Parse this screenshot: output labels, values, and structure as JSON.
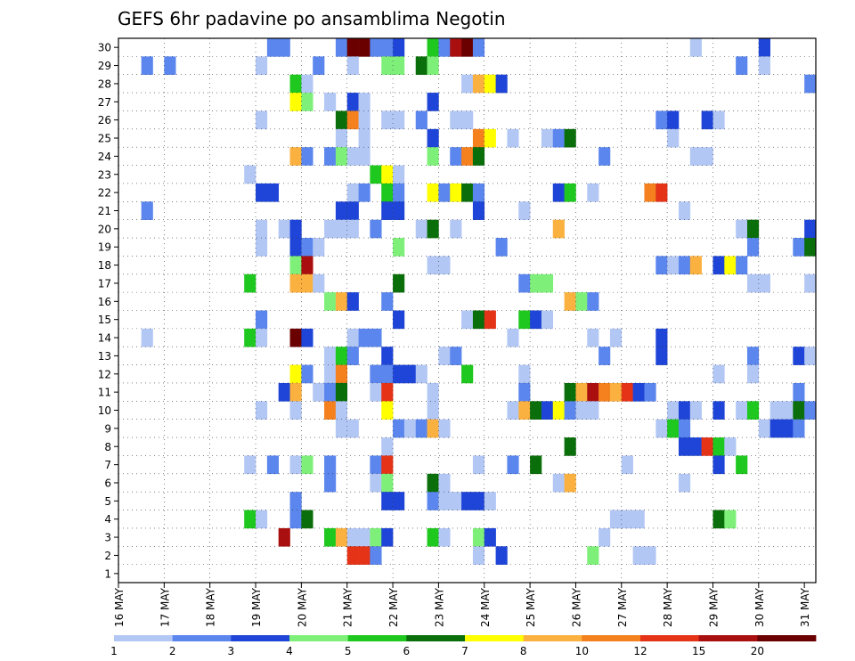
{
  "chart_data": {
    "type": "heatmap",
    "title": "GEFS 6hr padavine po ansamblima Negotin",
    "y_categories": [
      "1",
      "2",
      "3",
      "4",
      "5",
      "6",
      "7",
      "8",
      "9",
      "10",
      "11",
      "12",
      "13",
      "14",
      "15",
      "16",
      "17",
      "18",
      "19",
      "20",
      "21",
      "22",
      "23",
      "24",
      "25",
      "26",
      "27",
      "28",
      "29",
      "30"
    ],
    "x_tick_labels": [
      "16 MAY",
      "17 MAY",
      "18 MAY",
      "19 MAY",
      "20 MAY",
      "21 MAY",
      "22 MAY",
      "23 MAY",
      "24 MAY",
      "25 MAY",
      "26 MAY",
      "27 MAY",
      "28 MAY",
      "29 MAY",
      "30 MAY",
      "31 MAY"
    ],
    "x_steps_per_day": 4,
    "x_steps_total": 61,
    "grid": true,
    "colorbar": {
      "levels": [
        1,
        2,
        3,
        4,
        5,
        6,
        7,
        8,
        10,
        12,
        15,
        20
      ],
      "level_labels": [
        "1",
        "2",
        "3",
        "4",
        "5",
        "6",
        "7",
        "8",
        "10",
        "12",
        "15",
        "20"
      ],
      "colors": [
        "#b3c7f5",
        "#5b86ee",
        "#1e45d7",
        "#7ef07a",
        "#1ec81e",
        "#0a6e0a",
        "#ffff00",
        "#fbb13f",
        "#f4801e",
        "#e53318",
        "#aa0f0f",
        "#6b0000"
      ]
    },
    "cells": [
      [
        30,
        13,
        1
      ],
      [
        30,
        14,
        1
      ],
      [
        30,
        19,
        1
      ],
      [
        30,
        20,
        11
      ],
      [
        30,
        21,
        11
      ],
      [
        30,
        22,
        1
      ],
      [
        30,
        23,
        1
      ],
      [
        30,
        24,
        2
      ],
      [
        30,
        27,
        4
      ],
      [
        30,
        28,
        1
      ],
      [
        30,
        29,
        10
      ],
      [
        30,
        30,
        11
      ],
      [
        30,
        31,
        1
      ],
      [
        30,
        50,
        0
      ],
      [
        30,
        56,
        2
      ],
      [
        29,
        2,
        1
      ],
      [
        29,
        4,
        1
      ],
      [
        29,
        12,
        0
      ],
      [
        29,
        17,
        1
      ],
      [
        29,
        20,
        0
      ],
      [
        29,
        23,
        3
      ],
      [
        29,
        24,
        3
      ],
      [
        29,
        26,
        5
      ],
      [
        29,
        27,
        3
      ],
      [
        29,
        54,
        1
      ],
      [
        29,
        56,
        0
      ],
      [
        28,
        15,
        4
      ],
      [
        28,
        16,
        0
      ],
      [
        28,
        30,
        0
      ],
      [
        28,
        31,
        7
      ],
      [
        28,
        32,
        6
      ],
      [
        28,
        33,
        2
      ],
      [
        28,
        60,
        1
      ],
      [
        27,
        15,
        6
      ],
      [
        27,
        16,
        3
      ],
      [
        27,
        18,
        0
      ],
      [
        27,
        20,
        2
      ],
      [
        27,
        21,
        0
      ],
      [
        27,
        27,
        2
      ],
      [
        26,
        12,
        0
      ],
      [
        26,
        19,
        5
      ],
      [
        26,
        20,
        8
      ],
      [
        26,
        21,
        0
      ],
      [
        26,
        23,
        0
      ],
      [
        26,
        24,
        0
      ],
      [
        26,
        26,
        1
      ],
      [
        26,
        29,
        0
      ],
      [
        26,
        30,
        0
      ],
      [
        26,
        47,
        1
      ],
      [
        26,
        48,
        2
      ],
      [
        26,
        51,
        2
      ],
      [
        26,
        52,
        0
      ],
      [
        25,
        19,
        0
      ],
      [
        25,
        21,
        0
      ],
      [
        25,
        27,
        2
      ],
      [
        25,
        31,
        8
      ],
      [
        25,
        32,
        6
      ],
      [
        25,
        34,
        0
      ],
      [
        25,
        37,
        0
      ],
      [
        25,
        38,
        1
      ],
      [
        25,
        39,
        5
      ],
      [
        25,
        48,
        0
      ],
      [
        24,
        15,
        7
      ],
      [
        24,
        16,
        1
      ],
      [
        24,
        18,
        1
      ],
      [
        24,
        19,
        3
      ],
      [
        24,
        20,
        0
      ],
      [
        24,
        21,
        0
      ],
      [
        24,
        27,
        3
      ],
      [
        24,
        29,
        1
      ],
      [
        24,
        30,
        8
      ],
      [
        24,
        31,
        5
      ],
      [
        24,
        42,
        1
      ],
      [
        24,
        50,
        0
      ],
      [
        24,
        51,
        0
      ],
      [
        23,
        11,
        0
      ],
      [
        23,
        22,
        4
      ],
      [
        23,
        23,
        6
      ],
      [
        23,
        24,
        0
      ],
      [
        22,
        12,
        2
      ],
      [
        22,
        13,
        2
      ],
      [
        22,
        20,
        0
      ],
      [
        22,
        21,
        1
      ],
      [
        22,
        23,
        4
      ],
      [
        22,
        24,
        1
      ],
      [
        22,
        27,
        6
      ],
      [
        22,
        28,
        1
      ],
      [
        22,
        29,
        6
      ],
      [
        22,
        30,
        5
      ],
      [
        22,
        31,
        1
      ],
      [
        22,
        38,
        2
      ],
      [
        22,
        39,
        4
      ],
      [
        22,
        41,
        0
      ],
      [
        22,
        46,
        8
      ],
      [
        22,
        47,
        9
      ],
      [
        21,
        2,
        1
      ],
      [
        21,
        19,
        2
      ],
      [
        21,
        20,
        2
      ],
      [
        21,
        23,
        2
      ],
      [
        21,
        24,
        2
      ],
      [
        21,
        31,
        2
      ],
      [
        21,
        35,
        0
      ],
      [
        21,
        49,
        0
      ],
      [
        20,
        12,
        0
      ],
      [
        20,
        14,
        0
      ],
      [
        20,
        15,
        2
      ],
      [
        20,
        18,
        0
      ],
      [
        20,
        19,
        0
      ],
      [
        20,
        20,
        0
      ],
      [
        20,
        22,
        1
      ],
      [
        20,
        26,
        0
      ],
      [
        20,
        27,
        5
      ],
      [
        20,
        29,
        0
      ],
      [
        20,
        38,
        7
      ],
      [
        20,
        54,
        0
      ],
      [
        20,
        55,
        5
      ],
      [
        20,
        60,
        2
      ],
      [
        19,
        12,
        0
      ],
      [
        19,
        15,
        2
      ],
      [
        19,
        16,
        1
      ],
      [
        19,
        17,
        0
      ],
      [
        19,
        24,
        3
      ],
      [
        19,
        33,
        1
      ],
      [
        19,
        55,
        1
      ],
      [
        19,
        59,
        1
      ],
      [
        19,
        60,
        5
      ],
      [
        18,
        15,
        3
      ],
      [
        18,
        16,
        10
      ],
      [
        18,
        27,
        0
      ],
      [
        18,
        28,
        0
      ],
      [
        18,
        47,
        1
      ],
      [
        18,
        48,
        0
      ],
      [
        18,
        49,
        1
      ],
      [
        18,
        50,
        7
      ],
      [
        18,
        52,
        2
      ],
      [
        18,
        53,
        6
      ],
      [
        18,
        54,
        1
      ],
      [
        17,
        11,
        4
      ],
      [
        17,
        15,
        7
      ],
      [
        17,
        16,
        7
      ],
      [
        17,
        17,
        0
      ],
      [
        17,
        24,
        5
      ],
      [
        17,
        35,
        1
      ],
      [
        17,
        36,
        3
      ],
      [
        17,
        37,
        3
      ],
      [
        17,
        55,
        0
      ],
      [
        17,
        56,
        0
      ],
      [
        17,
        60,
        0
      ],
      [
        16,
        18,
        3
      ],
      [
        16,
        19,
        7
      ],
      [
        16,
        20,
        2
      ],
      [
        16,
        23,
        1
      ],
      [
        16,
        39,
        7
      ],
      [
        16,
        40,
        3
      ],
      [
        16,
        41,
        1
      ],
      [
        15,
        12,
        1
      ],
      [
        15,
        24,
        2
      ],
      [
        15,
        30,
        0
      ],
      [
        15,
        31,
        5
      ],
      [
        15,
        32,
        9
      ],
      [
        15,
        35,
        4
      ],
      [
        15,
        36,
        2
      ],
      [
        15,
        37,
        0
      ],
      [
        14,
        2,
        0
      ],
      [
        14,
        11,
        4
      ],
      [
        14,
        12,
        0
      ],
      [
        14,
        15,
        11
      ],
      [
        14,
        16,
        2
      ],
      [
        14,
        20,
        0
      ],
      [
        14,
        21,
        1
      ],
      [
        14,
        22,
        1
      ],
      [
        14,
        34,
        0
      ],
      [
        14,
        41,
        0
      ],
      [
        14,
        43,
        0
      ],
      [
        14,
        47,
        2
      ],
      [
        13,
        18,
        0
      ],
      [
        13,
        19,
        4
      ],
      [
        13,
        20,
        1
      ],
      [
        13,
        23,
        2
      ],
      [
        13,
        28,
        0
      ],
      [
        13,
        29,
        1
      ],
      [
        13,
        42,
        1
      ],
      [
        13,
        47,
        2
      ],
      [
        13,
        55,
        1
      ],
      [
        13,
        59,
        2
      ],
      [
        13,
        60,
        0
      ],
      [
        12,
        15,
        6
      ],
      [
        12,
        16,
        1
      ],
      [
        12,
        18,
        0
      ],
      [
        12,
        19,
        8
      ],
      [
        12,
        22,
        1
      ],
      [
        12,
        23,
        1
      ],
      [
        12,
        24,
        2
      ],
      [
        12,
        25,
        2
      ],
      [
        12,
        26,
        0
      ],
      [
        12,
        30,
        4
      ],
      [
        12,
        35,
        0
      ],
      [
        12,
        52,
        0
      ],
      [
        12,
        55,
        0
      ],
      [
        11,
        14,
        2
      ],
      [
        11,
        15,
        7
      ],
      [
        11,
        17,
        0
      ],
      [
        11,
        18,
        1
      ],
      [
        11,
        19,
        5
      ],
      [
        11,
        22,
        0
      ],
      [
        11,
        23,
        9
      ],
      [
        11,
        27,
        0
      ],
      [
        11,
        35,
        1
      ],
      [
        11,
        39,
        5
      ],
      [
        11,
        40,
        7
      ],
      [
        11,
        41,
        10
      ],
      [
        11,
        42,
        8
      ],
      [
        11,
        43,
        7
      ],
      [
        11,
        44,
        9
      ],
      [
        11,
        45,
        2
      ],
      [
        11,
        46,
        1
      ],
      [
        11,
        59,
        1
      ],
      [
        10,
        12,
        0
      ],
      [
        10,
        15,
        0
      ],
      [
        10,
        18,
        8
      ],
      [
        10,
        19,
        0
      ],
      [
        10,
        23,
        6
      ],
      [
        10,
        27,
        0
      ],
      [
        10,
        34,
        0
      ],
      [
        10,
        35,
        7
      ],
      [
        10,
        36,
        5
      ],
      [
        10,
        37,
        2
      ],
      [
        10,
        38,
        6
      ],
      [
        10,
        39,
        1
      ],
      [
        10,
        40,
        0
      ],
      [
        10,
        41,
        0
      ],
      [
        10,
        48,
        0
      ],
      [
        10,
        49,
        2
      ],
      [
        10,
        50,
        0
      ],
      [
        10,
        52,
        2
      ],
      [
        10,
        54,
        0
      ],
      [
        10,
        55,
        4
      ],
      [
        10,
        57,
        0
      ],
      [
        10,
        58,
        0
      ],
      [
        10,
        59,
        5
      ],
      [
        10,
        60,
        1
      ],
      [
        9,
        19,
        0
      ],
      [
        9,
        20,
        0
      ],
      [
        9,
        24,
        1
      ],
      [
        9,
        25,
        0
      ],
      [
        9,
        26,
        1
      ],
      [
        9,
        27,
        7
      ],
      [
        9,
        28,
        0
      ],
      [
        9,
        47,
        0
      ],
      [
        9,
        48,
        4
      ],
      [
        9,
        49,
        1
      ],
      [
        9,
        56,
        0
      ],
      [
        9,
        57,
        2
      ],
      [
        9,
        58,
        2
      ],
      [
        9,
        59,
        1
      ],
      [
        8,
        23,
        0
      ],
      [
        8,
        39,
        5
      ],
      [
        8,
        49,
        2
      ],
      [
        8,
        50,
        2
      ],
      [
        8,
        51,
        9
      ],
      [
        8,
        52,
        4
      ],
      [
        8,
        53,
        0
      ],
      [
        7,
        11,
        0
      ],
      [
        7,
        13,
        1
      ],
      [
        7,
        15,
        0
      ],
      [
        7,
        16,
        3
      ],
      [
        7,
        18,
        1
      ],
      [
        7,
        22,
        1
      ],
      [
        7,
        23,
        9
      ],
      [
        7,
        31,
        0
      ],
      [
        7,
        34,
        1
      ],
      [
        7,
        36,
        5
      ],
      [
        7,
        44,
        0
      ],
      [
        7,
        52,
        2
      ],
      [
        7,
        54,
        4
      ],
      [
        6,
        18,
        1
      ],
      [
        6,
        22,
        0
      ],
      [
        6,
        23,
        3
      ],
      [
        6,
        27,
        5
      ],
      [
        6,
        28,
        0
      ],
      [
        6,
        38,
        0
      ],
      [
        6,
        39,
        7
      ],
      [
        6,
        49,
        0
      ],
      [
        5,
        15,
        1
      ],
      [
        5,
        23,
        2
      ],
      [
        5,
        24,
        2
      ],
      [
        5,
        27,
        1
      ],
      [
        5,
        28,
        0
      ],
      [
        5,
        29,
        0
      ],
      [
        5,
        30,
        2
      ],
      [
        5,
        31,
        2
      ],
      [
        5,
        32,
        0
      ],
      [
        4,
        11,
        4
      ],
      [
        4,
        12,
        0
      ],
      [
        4,
        15,
        1
      ],
      [
        4,
        16,
        5
      ],
      [
        4,
        43,
        0
      ],
      [
        4,
        44,
        0
      ],
      [
        4,
        45,
        0
      ],
      [
        4,
        52,
        5
      ],
      [
        4,
        53,
        3
      ],
      [
        3,
        14,
        10
      ],
      [
        3,
        18,
        4
      ],
      [
        3,
        19,
        7
      ],
      [
        3,
        20,
        0
      ],
      [
        3,
        21,
        0
      ],
      [
        3,
        22,
        3
      ],
      [
        3,
        23,
        2
      ],
      [
        3,
        27,
        4
      ],
      [
        3,
        28,
        0
      ],
      [
        3,
        31,
        3
      ],
      [
        3,
        32,
        2
      ],
      [
        3,
        42,
        0
      ],
      [
        2,
        20,
        9
      ],
      [
        2,
        21,
        9
      ],
      [
        2,
        22,
        1
      ],
      [
        2,
        31,
        0
      ],
      [
        2,
        33,
        2
      ],
      [
        2,
        41,
        3
      ],
      [
        2,
        45,
        0
      ],
      [
        2,
        46,
        0
      ]
    ]
  }
}
